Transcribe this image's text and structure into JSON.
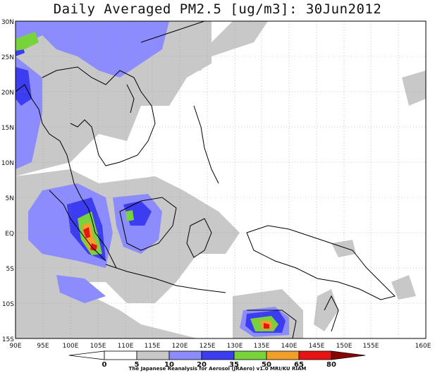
{
  "title": "Daily Averaged PM2.5 [ug/m3]: 30Jun2012",
  "lon_labels": [
    "90E",
    "95E",
    "100E",
    "105E",
    "110E",
    "115E",
    "120E",
    "125E",
    "130E",
    "135E",
    "140E",
    "145E",
    "150E",
    "155E",
    "160E"
  ],
  "lat_labels": [
    "30N",
    "25N",
    "20N",
    "15N",
    "10N",
    "5N",
    "EQ",
    "5S",
    "10S",
    "15S"
  ],
  "colorbar": {
    "levels": [
      "0",
      "5",
      "10",
      "20",
      "35",
      "50",
      "65",
      "80"
    ],
    "colors": [
      "#ffffff",
      "#ffffff",
      "#c8c8c8",
      "#8c8cff",
      "#3c3cf0",
      "#78d23c",
      "#f0a028",
      "#e61414",
      "#8b0000"
    ]
  },
  "legend_colors": {
    "5-10": "#c8c8c8",
    "10-20": "#8c8cff",
    "20-35": "#3c3cf0",
    "35-50": "#78d23c",
    "50-65": "#f0a028",
    "65-80": "#e61414",
    "80+": "#8b0000"
  },
  "credit": "The Japanese Reanalysis for Aerosol (JRAero) v1.0 MRI/KU RIAM"
}
